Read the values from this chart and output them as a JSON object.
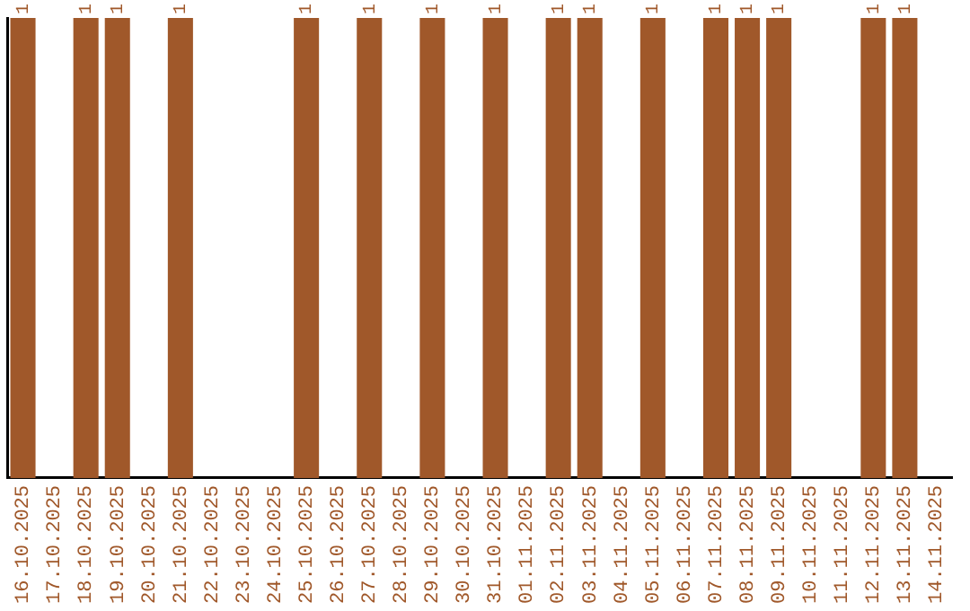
{
  "chart_data": {
    "type": "bar",
    "tick_labels": "x",
    "categories": [
      "16.10.2025",
      "17.10.2025",
      "18.10.2025",
      "19.10.2025",
      "20.10.2025",
      "21.10.2025",
      "22.10.2025",
      "23.10.2025",
      "24.10.2025",
      "25.10.2025",
      "26.10.2025",
      "27.10.2025",
      "28.10.2025",
      "29.10.2025",
      "30.10.2025",
      "31.10.2025",
      "01.11.2025",
      "02.11.2025",
      "03.11.2025",
      "04.11.2025",
      "05.11.2025",
      "06.11.2025",
      "07.11.2025",
      "08.11.2025",
      "09.11.2025",
      "10.11.2025",
      "11.11.2025",
      "12.11.2025",
      "13.11.2025",
      "14.11.2025"
    ],
    "values": [
      1,
      0,
      1,
      1,
      0,
      1,
      0,
      0,
      0,
      1,
      0,
      1,
      0,
      1,
      0,
      1,
      0,
      1,
      1,
      0,
      1,
      0,
      1,
      1,
      1,
      0,
      0,
      1,
      1,
      0
    ],
    "value_labels": [
      "1",
      null,
      "1",
      "1",
      null,
      "1",
      null,
      null,
      null,
      "1",
      null,
      "1",
      null,
      "1",
      null,
      "1",
      null,
      "1",
      "1",
      null,
      "1",
      null,
      "1",
      "1",
      "1",
      null,
      null,
      "1",
      "1",
      null
    ],
    "color": "#a0582a",
    "grid": false,
    "legend": false
  }
}
